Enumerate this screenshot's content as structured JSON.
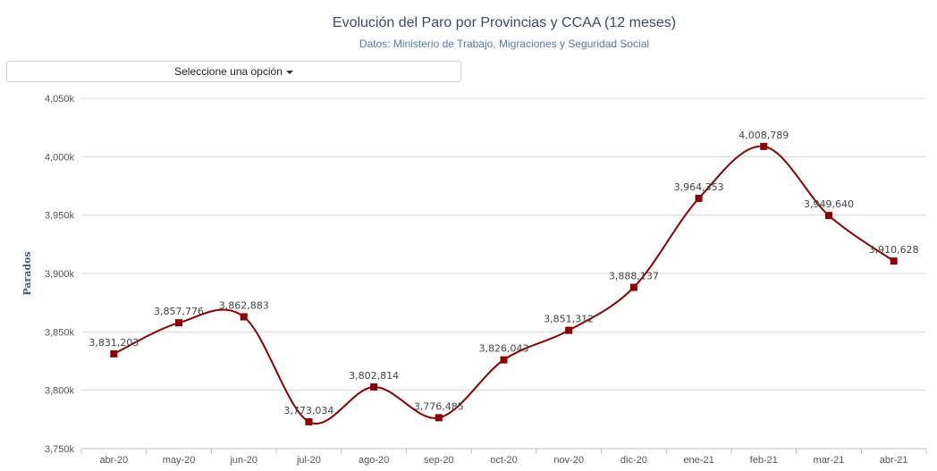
{
  "selector": {
    "label": "Seleccione una opción"
  },
  "chart_data": {
    "type": "line",
    "title": "Evolución del Paro por Provincias y CCAA (12 meses)",
    "subtitle": "Datos: Ministerio de Trabajo, Migraciones y Seguridad Social",
    "xlabel": "",
    "ylabel": "Parados",
    "ylim": [
      3750000,
      4050000
    ],
    "yticks": [
      3750000,
      3800000,
      3850000,
      3900000,
      3950000,
      4000000,
      4050000
    ],
    "ytick_labels": [
      "3,750k",
      "3,800k",
      "3,850k",
      "3,900k",
      "3,950k",
      "4,000k",
      "4,050k"
    ],
    "categories": [
      "abr-20",
      "may-20",
      "jun-20",
      "jul-20",
      "ago-20",
      "sep-20",
      "oct-20",
      "nov-20",
      "dic-20",
      "ene-21",
      "feb-21",
      "mar-21",
      "abr-21"
    ],
    "series": [
      {
        "name": "Parados",
        "color": "#8b0000",
        "values": [
          3831203,
          3857776,
          3862883,
          3773034,
          3802814,
          3776485,
          3826043,
          3851312,
          3888137,
          3964353,
          4008789,
          3949640,
          3910628
        ],
        "labels": [
          "3,831,203",
          "3,857,776",
          "3,862,883",
          "3,773,034",
          "3,802,814",
          "3,776,485",
          "3,826,043",
          "3,851,312",
          "3,888,137",
          "3,964,353",
          "4,008,789",
          "3,949,640",
          "3,910,628"
        ]
      }
    ],
    "grid": true
  }
}
